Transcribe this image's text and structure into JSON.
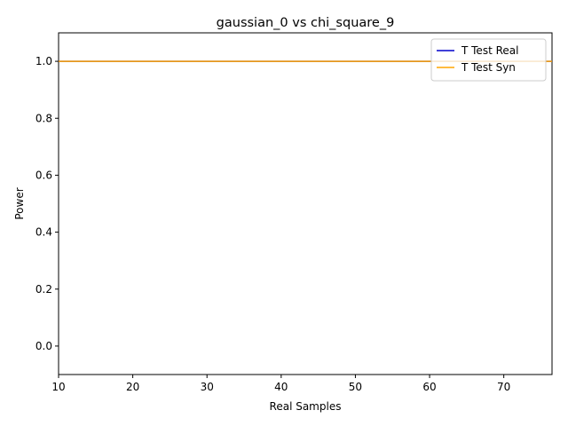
{
  "chart_data": {
    "type": "line",
    "title": "gaussian_0 vs chi_square_9",
    "xlabel": "Real Samples",
    "ylabel": "Power",
    "xlim": [
      10,
      76.5
    ],
    "ylim": [
      -0.1,
      1.1
    ],
    "xticks": [
      10,
      20,
      30,
      40,
      50,
      60,
      70
    ],
    "yticks": [
      0.0,
      0.2,
      0.4,
      0.6,
      0.8,
      1.0
    ],
    "grid": false,
    "legend_position": "top-right",
    "series": [
      {
        "name": "T Test Real",
        "color": "#0000cc",
        "x": [
          10,
          76.5
        ],
        "y": [
          1.0,
          1.0
        ]
      },
      {
        "name": "T Test Syn",
        "color": "#ffa500",
        "x": [
          10,
          76.5
        ],
        "y": [
          1.0,
          1.0
        ]
      }
    ]
  }
}
